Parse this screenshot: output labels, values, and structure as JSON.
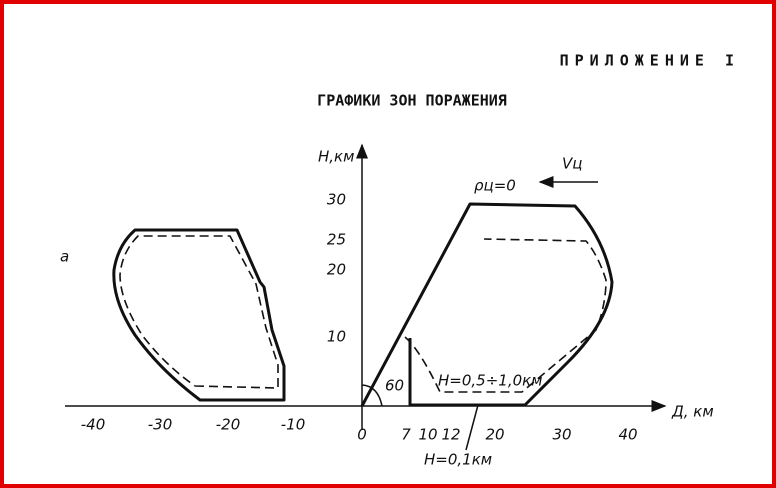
{
  "header": {
    "appendix": "ПРИЛОЖЕНИЕ I",
    "title": "ГРАФИКИ ЗОН ПОРАЖЕНИЯ"
  },
  "figure": {
    "panel_label": "а",
    "y_axis_label": "Н,км",
    "x_axis_label": "Д, км",
    "x_ticks": [
      "-40",
      "-30",
      "-20",
      "-10",
      "0",
      "7",
      "10",
      "12",
      "20",
      "30",
      "40"
    ],
    "y_ticks": [
      "30",
      "25",
      "20",
      "10"
    ],
    "annotations": {
      "target_speed": "Vц",
      "parameter": "ρц=0",
      "angle": "60",
      "altitude_range": "Н=0,5÷1,0км",
      "altitude_low": "Н=0,1км"
    }
  }
}
